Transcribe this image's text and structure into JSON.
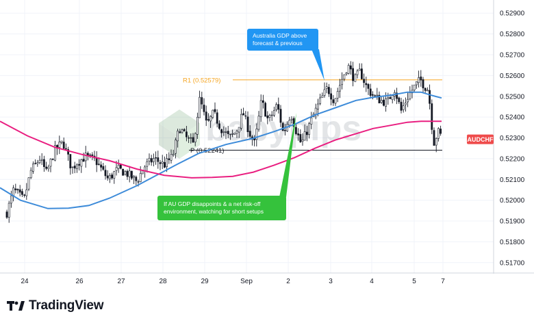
{
  "branding": {
    "logo_text": "TradingView",
    "watermark_text": "babypips"
  },
  "chart_data": {
    "type": "candlestick",
    "symbol": "AUDCHF",
    "x_ticks": [
      "24",
      "26",
      "27",
      "28",
      "29",
      "Sep",
      "2",
      "3",
      "4",
      "5",
      "7"
    ],
    "y_ticks": [
      "0.52900",
      "0.52800",
      "0.52700",
      "0.52600",
      "0.52500",
      "0.52400",
      "0.52300",
      "0.52200",
      "0.52100",
      "0.52000",
      "0.51900",
      "0.51800",
      "0.51700"
    ],
    "ylim": [
      0.5165,
      0.5296
    ],
    "last_price": 0.52293,
    "levels": [
      {
        "label": "R1 (0.52579)",
        "value": 0.52579,
        "color": "#f5a623"
      },
      {
        "label": "P (0.52241)",
        "value": 0.52241,
        "color": "#131722"
      }
    ],
    "moving_averages": [
      {
        "color": "#3d8bd9",
        "points": [
          [
            0,
            0.5206
          ],
          [
            30,
            0.52
          ],
          [
            70,
            0.5196
          ],
          [
            100,
            0.51962
          ],
          [
            130,
            0.51975
          ],
          [
            160,
            0.5201
          ],
          [
            200,
            0.5207
          ],
          [
            240,
            0.5214
          ],
          [
            260,
            0.52175
          ],
          [
            290,
            0.52225
          ],
          [
            330,
            0.52268
          ],
          [
            370,
            0.52298
          ],
          [
            400,
            0.5233
          ],
          [
            430,
            0.52365
          ],
          [
            460,
            0.5241
          ],
          [
            490,
            0.52445
          ],
          [
            520,
            0.5248
          ],
          [
            545,
            0.52495
          ],
          [
            570,
            0.52505
          ],
          [
            595,
            0.5252
          ],
          [
            615,
            0.5252
          ],
          [
            630,
            0.52505
          ],
          [
            645,
            0.52492
          ]
        ]
      },
      {
        "color": "#e91e80",
        "points": [
          [
            0,
            0.5238
          ],
          [
            40,
            0.5231
          ],
          [
            80,
            0.52255
          ],
          [
            120,
            0.5222
          ],
          [
            160,
            0.5219
          ],
          [
            200,
            0.5215
          ],
          [
            240,
            0.5212
          ],
          [
            280,
            0.52108
          ],
          [
            310,
            0.5211
          ],
          [
            340,
            0.52115
          ],
          [
            370,
            0.52135
          ],
          [
            400,
            0.52168
          ],
          [
            430,
            0.52205
          ],
          [
            460,
            0.5225
          ],
          [
            490,
            0.5229
          ],
          [
            520,
            0.5232
          ],
          [
            545,
            0.52345
          ],
          [
            570,
            0.5236
          ],
          [
            595,
            0.52375
          ],
          [
            615,
            0.5238
          ],
          [
            630,
            0.5238
          ],
          [
            645,
            0.5238
          ]
        ]
      }
    ],
    "close_path": [
      [
        10,
        0.5194
      ],
      [
        20,
        0.5205
      ],
      [
        35,
        0.52
      ],
      [
        45,
        0.5214
      ],
      [
        58,
        0.522
      ],
      [
        68,
        0.5213
      ],
      [
        80,
        0.5224
      ],
      [
        92,
        0.5228
      ],
      [
        105,
        0.5215
      ],
      [
        112,
        0.5218
      ],
      [
        125,
        0.5221
      ],
      [
        140,
        0.5219
      ],
      [
        158,
        0.521
      ],
      [
        172,
        0.5215
      ],
      [
        185,
        0.5213
      ],
      [
        200,
        0.5209
      ],
      [
        210,
        0.5216
      ],
      [
        225,
        0.522
      ],
      [
        240,
        0.5217
      ],
      [
        252,
        0.5221
      ],
      [
        262,
        0.5235
      ],
      [
        272,
        0.523
      ],
      [
        282,
        0.5227
      ],
      [
        292,
        0.5249
      ],
      [
        302,
        0.5236
      ],
      [
        312,
        0.5242
      ],
      [
        322,
        0.5235
      ],
      [
        335,
        0.523
      ],
      [
        345,
        0.5233
      ],
      [
        355,
        0.5242
      ],
      [
        365,
        0.5232
      ],
      [
        372,
        0.5227
      ],
      [
        382,
        0.5248
      ],
      [
        392,
        0.5238
      ],
      [
        405,
        0.5246
      ],
      [
        414,
        0.5232
      ],
      [
        425,
        0.5242
      ],
      [
        432,
        0.5234
      ],
      [
        440,
        0.5227
      ],
      [
        448,
        0.5233
      ],
      [
        458,
        0.5241
      ],
      [
        468,
        0.5248
      ],
      [
        478,
        0.5254
      ],
      [
        488,
        0.5248
      ],
      [
        498,
        0.5257
      ],
      [
        508,
        0.5265
      ],
      [
        518,
        0.5258
      ],
      [
        526,
        0.5262
      ],
      [
        536,
        0.5254
      ],
      [
        546,
        0.525
      ],
      [
        556,
        0.5248
      ],
      [
        566,
        0.5247
      ],
      [
        576,
        0.5254
      ],
      [
        586,
        0.5243
      ],
      [
        596,
        0.525
      ],
      [
        606,
        0.5255
      ],
      [
        614,
        0.5258
      ],
      [
        620,
        0.5255
      ],
      [
        626,
        0.5253
      ],
      [
        630,
        0.5238
      ],
      [
        634,
        0.5228
      ],
      [
        640,
        0.5233
      ],
      [
        646,
        0.523
      ]
    ],
    "annotations": [
      {
        "text": [
          "Australia GDP above",
          "forecast & previous"
        ],
        "color": "#2196f3",
        "text_color": "#ffffff"
      },
      {
        "text": [
          "If AU GDP disappoints & a net risk-off",
          "environment, watching for short setups"
        ],
        "color": "#35c23c",
        "text_color": "#ffffff"
      }
    ]
  }
}
